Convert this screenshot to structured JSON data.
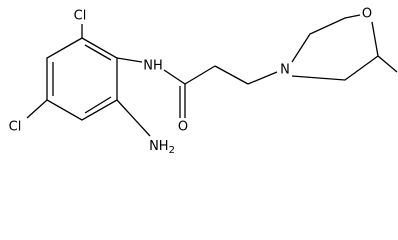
{
  "atoms": {
    "cl_top": "Cl",
    "cl_left": "Cl",
    "nh": "NH",
    "nh2": {
      "symbol": "NH",
      "subscript": "2"
    },
    "o_carbonyl": "O",
    "n_ring": "N",
    "o_ring": "O"
  }
}
